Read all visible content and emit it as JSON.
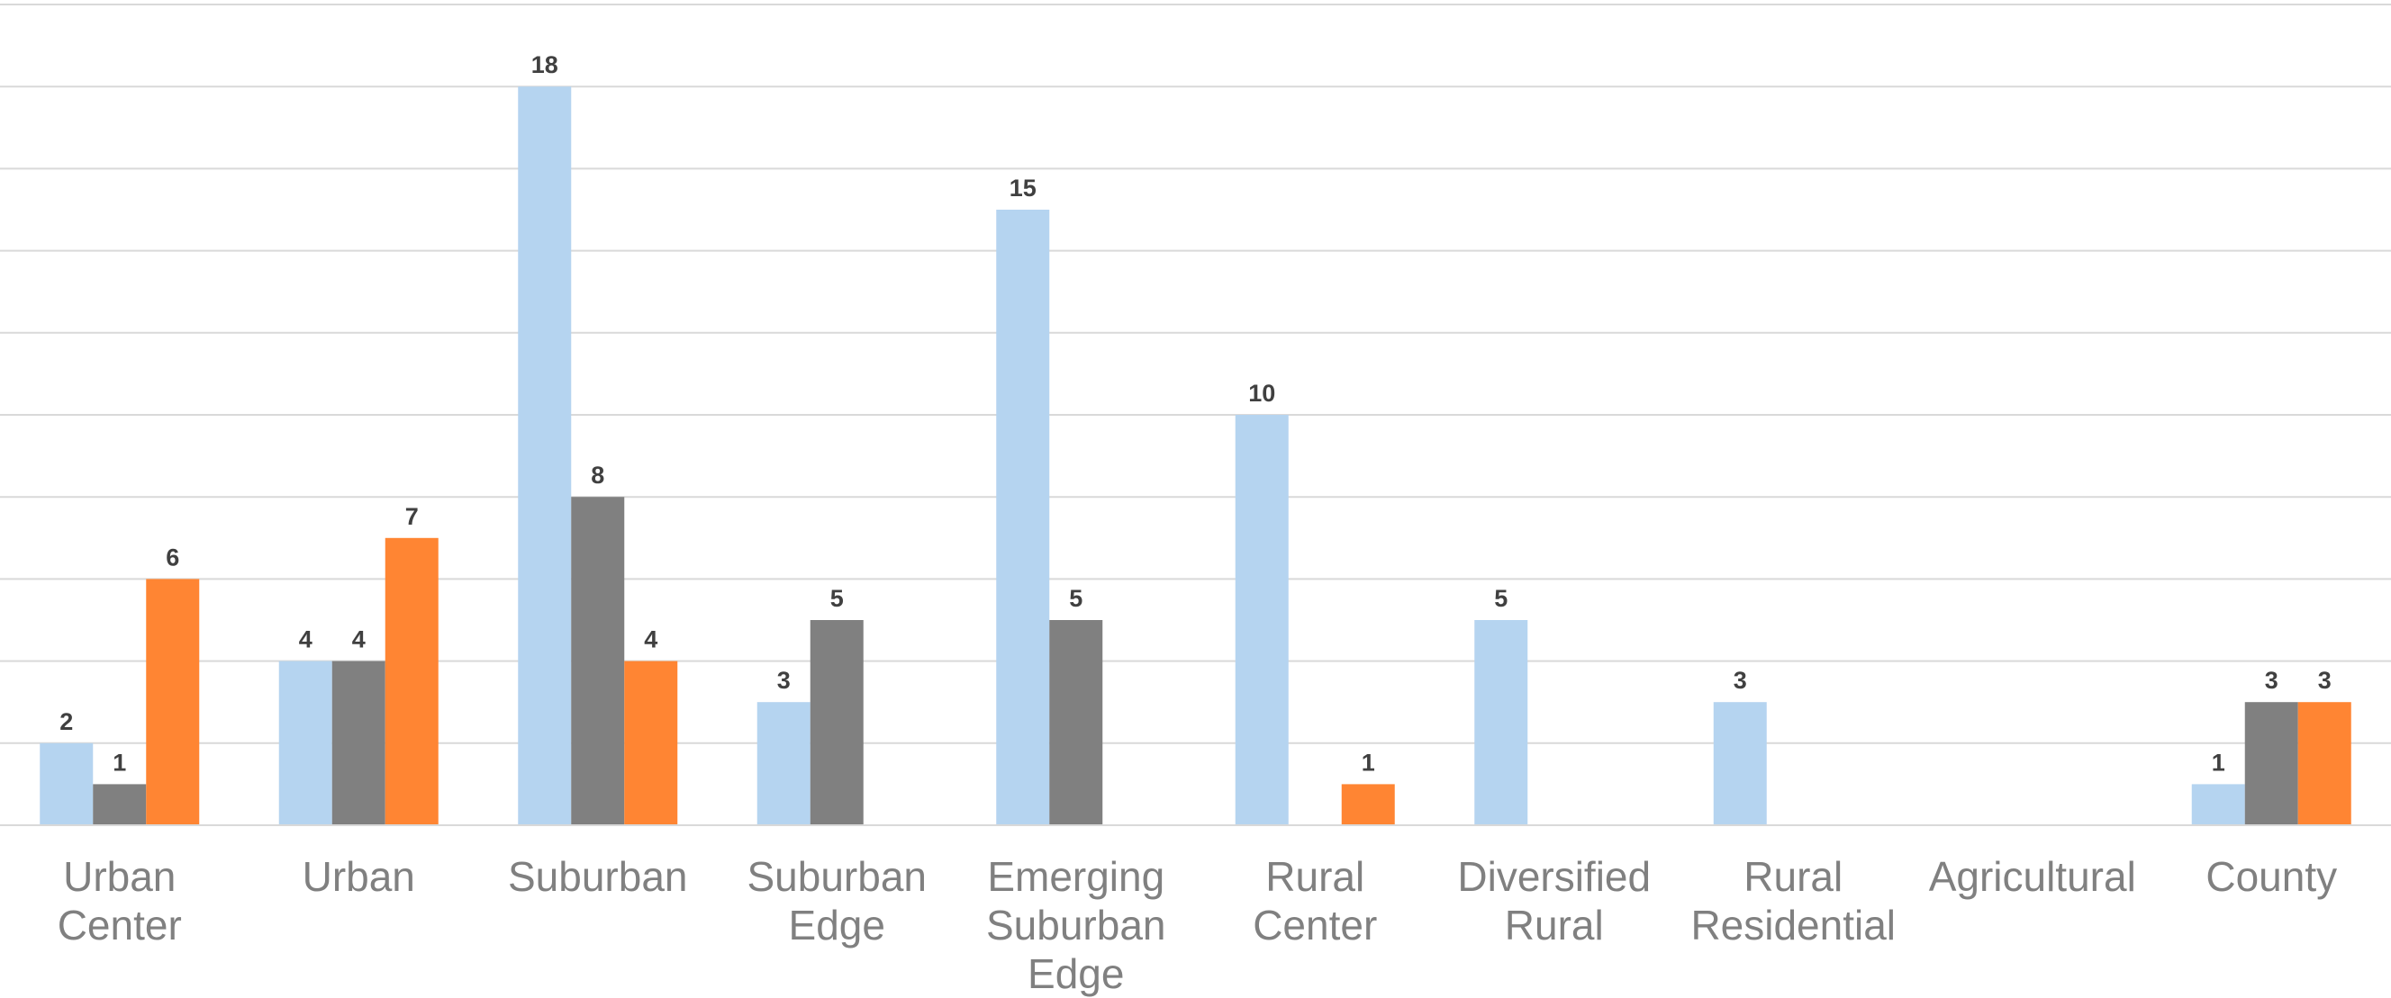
{
  "chart_data": {
    "type": "bar",
    "categories": [
      [
        "Urban",
        "Center"
      ],
      [
        "Urban"
      ],
      [
        "Suburban"
      ],
      [
        "Suburban",
        "Edge"
      ],
      [
        "Emerging",
        "Suburban",
        "Edge"
      ],
      [
        "Rural",
        "Center"
      ],
      [
        "Diversified",
        "Rural"
      ],
      [
        "Rural",
        "Residential"
      ],
      [
        "Agricultural"
      ],
      [
        "County"
      ]
    ],
    "series": [
      {
        "color": "#b5d4f0",
        "values": [
          2,
          4,
          18,
          3,
          15,
          10,
          5,
          3,
          null,
          1
        ]
      },
      {
        "color": "#808080",
        "values": [
          1,
          4,
          8,
          5,
          5,
          null,
          null,
          null,
          null,
          3
        ]
      },
      {
        "color": "#ff8533",
        "values": [
          6,
          7,
          4,
          null,
          null,
          1,
          null,
          null,
          null,
          3
        ]
      }
    ],
    "ylim": [
      0,
      20
    ],
    "grid": true,
    "legend": "none",
    "data_labels": true,
    "title": "",
    "xlabel": "",
    "ylabel": ""
  }
}
